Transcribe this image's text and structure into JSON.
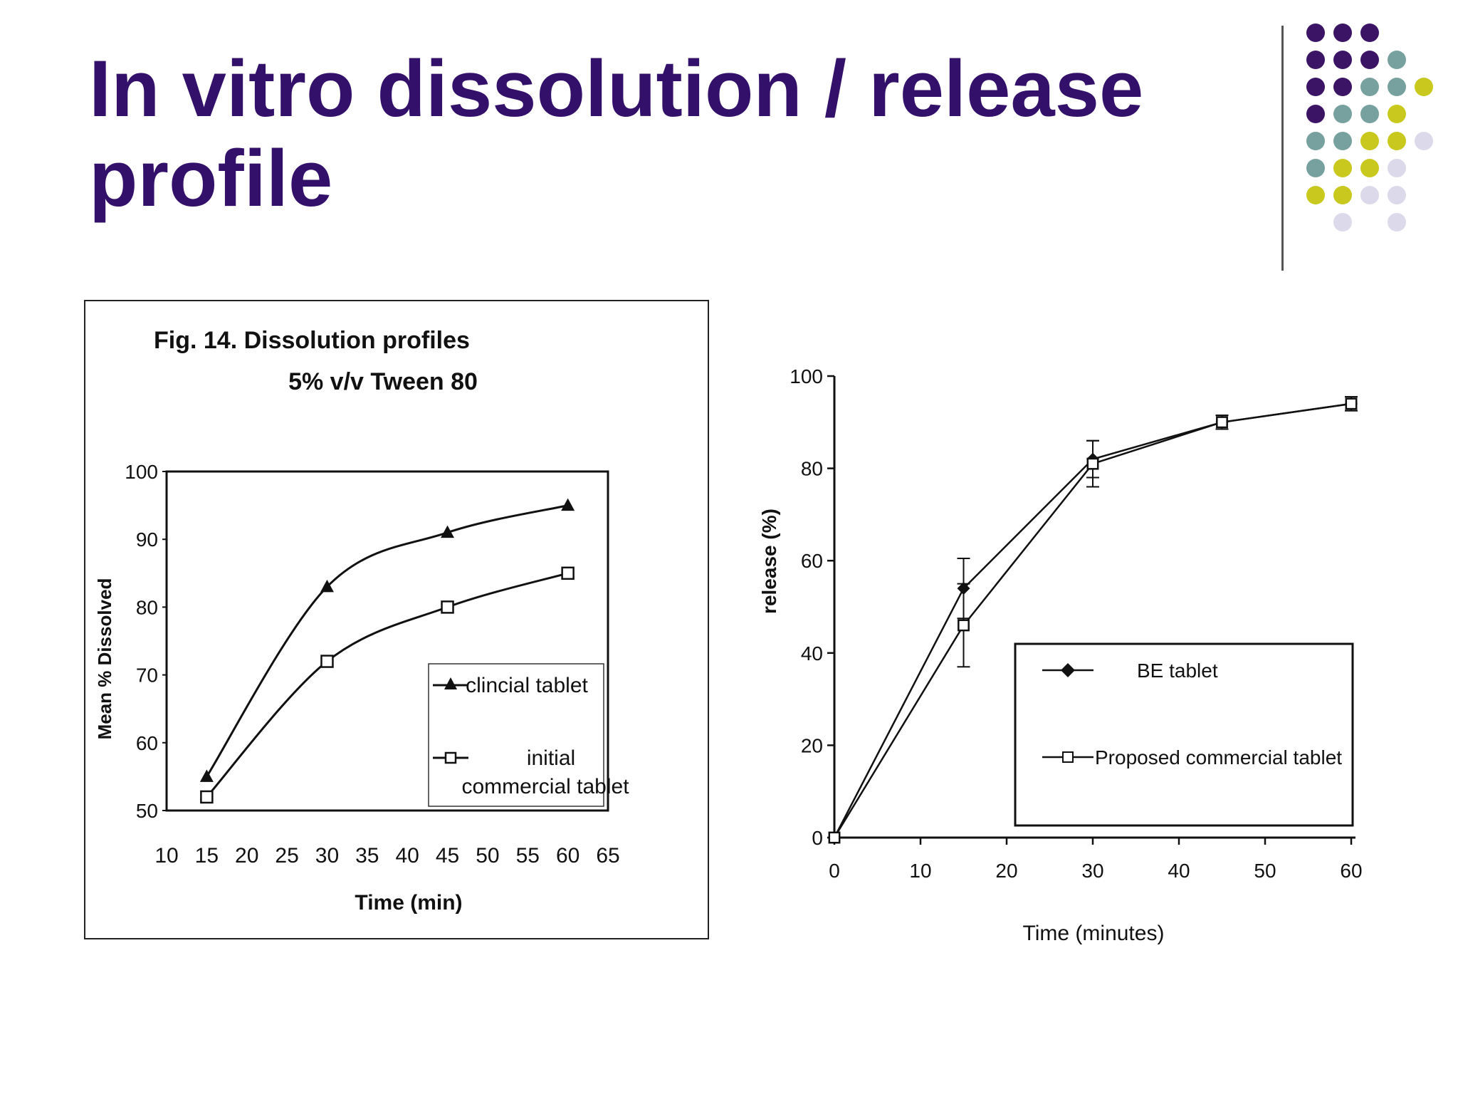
{
  "slide": {
    "title_line1": "In vitro dissolution / release",
    "title_line2": "profile",
    "title_color": "#33106a",
    "decor_colors": [
      "#3b1466",
      "#76a19e",
      "#c9c81e",
      "#dcdaea"
    ]
  },
  "chart_data": [
    {
      "type": "line",
      "title": "Fig. 14. Dissolution profiles",
      "subtitle": "5% v/v Tween 80",
      "xlabel": "Time (min)",
      "ylabel": "Mean % Dissolved",
      "xlim": [
        10,
        65
      ],
      "ylim": [
        50,
        100
      ],
      "xticks": [
        "10",
        "15",
        "20",
        "25",
        "30",
        "35",
        "40",
        "45",
        "50",
        "55",
        "60",
        "65"
      ],
      "yticks": [
        "50",
        "60",
        "70",
        "80",
        "90",
        "100"
      ],
      "grid": false,
      "legend_position": "bottom-right",
      "legend_line2": "commercial tablet",
      "series": [
        {
          "name": "clincial tablet",
          "marker": "filled-triangle",
          "x": [
            15,
            30,
            45,
            60
          ],
          "y": [
            55,
            83,
            91,
            95
          ]
        },
        {
          "name": "initial",
          "marker": "open-square",
          "x": [
            15,
            30,
            45,
            60
          ],
          "y": [
            52,
            72,
            80,
            85
          ]
        }
      ]
    },
    {
      "type": "line",
      "xlabel": "Time (minutes)",
      "ylabel": "release (%)",
      "xlim": [
        0,
        60
      ],
      "ylim": [
        0,
        100
      ],
      "xticks": [
        "0",
        "10",
        "20",
        "30",
        "40",
        "50",
        "60"
      ],
      "yticks": [
        "0",
        "20",
        "40",
        "60",
        "80",
        "100"
      ],
      "grid": false,
      "legend_position": "bottom-right",
      "series": [
        {
          "name": "BE tablet",
          "marker": "filled-diamond",
          "x": [
            0,
            15,
            30,
            45,
            60
          ],
          "y": [
            0,
            54,
            82,
            90,
            94
          ],
          "err": [
            0,
            6.5,
            4,
            1.5,
            1.5
          ]
        },
        {
          "name": "Proposed commercial tablet",
          "marker": "open-square",
          "x": [
            0,
            15,
            30,
            45,
            60
          ],
          "y": [
            0,
            46,
            81,
            90,
            94
          ],
          "err": [
            0,
            9,
            5,
            1.5,
            1.5
          ]
        }
      ]
    }
  ]
}
